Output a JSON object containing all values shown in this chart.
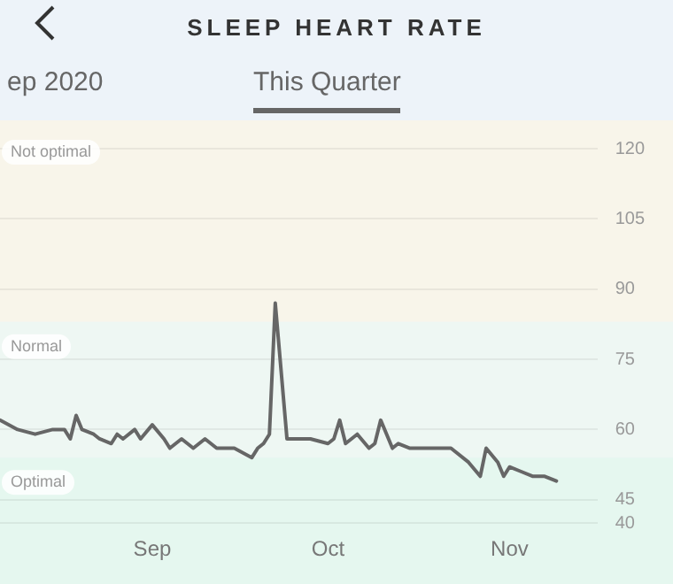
{
  "chart_data": {
    "type": "line",
    "title": "SLEEP HEART RATE",
    "annotations": [
      "ep 2020",
      "This Quarter"
    ],
    "x": [
      "2020-08-06",
      "2020-08-09",
      "2020-08-12",
      "2020-08-15",
      "2020-08-17",
      "2020-08-18",
      "2020-08-19",
      "2020-08-20",
      "2020-08-22",
      "2020-08-23",
      "2020-08-25",
      "2020-08-26",
      "2020-08-27",
      "2020-08-29",
      "2020-08-30",
      "2020-09-01",
      "2020-09-03",
      "2020-09-04",
      "2020-09-06",
      "2020-09-08",
      "2020-09-10",
      "2020-09-12",
      "2020-09-13",
      "2020-09-15",
      "2020-09-18",
      "2020-09-19",
      "2020-09-20",
      "2020-09-21",
      "2020-09-22",
      "2020-09-24",
      "2020-09-25",
      "2020-09-28",
      "2020-10-01",
      "2020-10-02",
      "2020-10-03",
      "2020-10-04",
      "2020-10-06",
      "2020-10-08",
      "2020-10-09",
      "2020-10-10",
      "2020-10-12",
      "2020-10-13",
      "2020-10-15",
      "2020-10-17",
      "2020-10-19",
      "2020-10-20",
      "2020-10-21",
      "2020-10-22",
      "2020-10-25",
      "2020-10-27",
      "2020-10-28",
      "2020-10-30",
      "2020-10-31",
      "2020-11-01",
      "2020-11-03",
      "2020-11-05",
      "2020-11-07",
      "2020-11-09"
    ],
    "series": [
      {
        "color": "#666666",
        "values": [
          62,
          60,
          59,
          60,
          60,
          58,
          63,
          60,
          59,
          58,
          57,
          59,
          58,
          60,
          58,
          61,
          58,
          56,
          58,
          56,
          58,
          56,
          56,
          56,
          54,
          56,
          57,
          59,
          87,
          58,
          58,
          58,
          57,
          58,
          62,
          57,
          59,
          56,
          57,
          62,
          56,
          57,
          56,
          56,
          56,
          56,
          56,
          56,
          53,
          50,
          56,
          53,
          50,
          52,
          51,
          50,
          50,
          49
        ]
      }
    ],
    "xlim": [
      "2020-08-06",
      "2020-11-16"
    ],
    "xticks": [
      {
        "value": "2020-09-01",
        "label": "Sep"
      },
      {
        "value": "2020-10-01",
        "label": "Oct"
      },
      {
        "value": "2020-11-01",
        "label": "Nov"
      }
    ],
    "ylim": [
      40,
      120
    ],
    "yticks": [
      40,
      45,
      60,
      75,
      90,
      105,
      120
    ],
    "bands": [
      {
        "axis": "y",
        "from": 83,
        "to": 120,
        "label": "Not optimal",
        "color": "#f8f5ea"
      },
      {
        "axis": "y",
        "from": 54,
        "to": 83,
        "label": "Normal",
        "color": "#eef7f3"
      },
      {
        "axis": "y",
        "from": 40,
        "to": 54,
        "label": "Optimal",
        "color": "#e5f7ef"
      }
    ],
    "grid": "y",
    "legend": false,
    "marker": "none",
    "line_style": "solid"
  }
}
